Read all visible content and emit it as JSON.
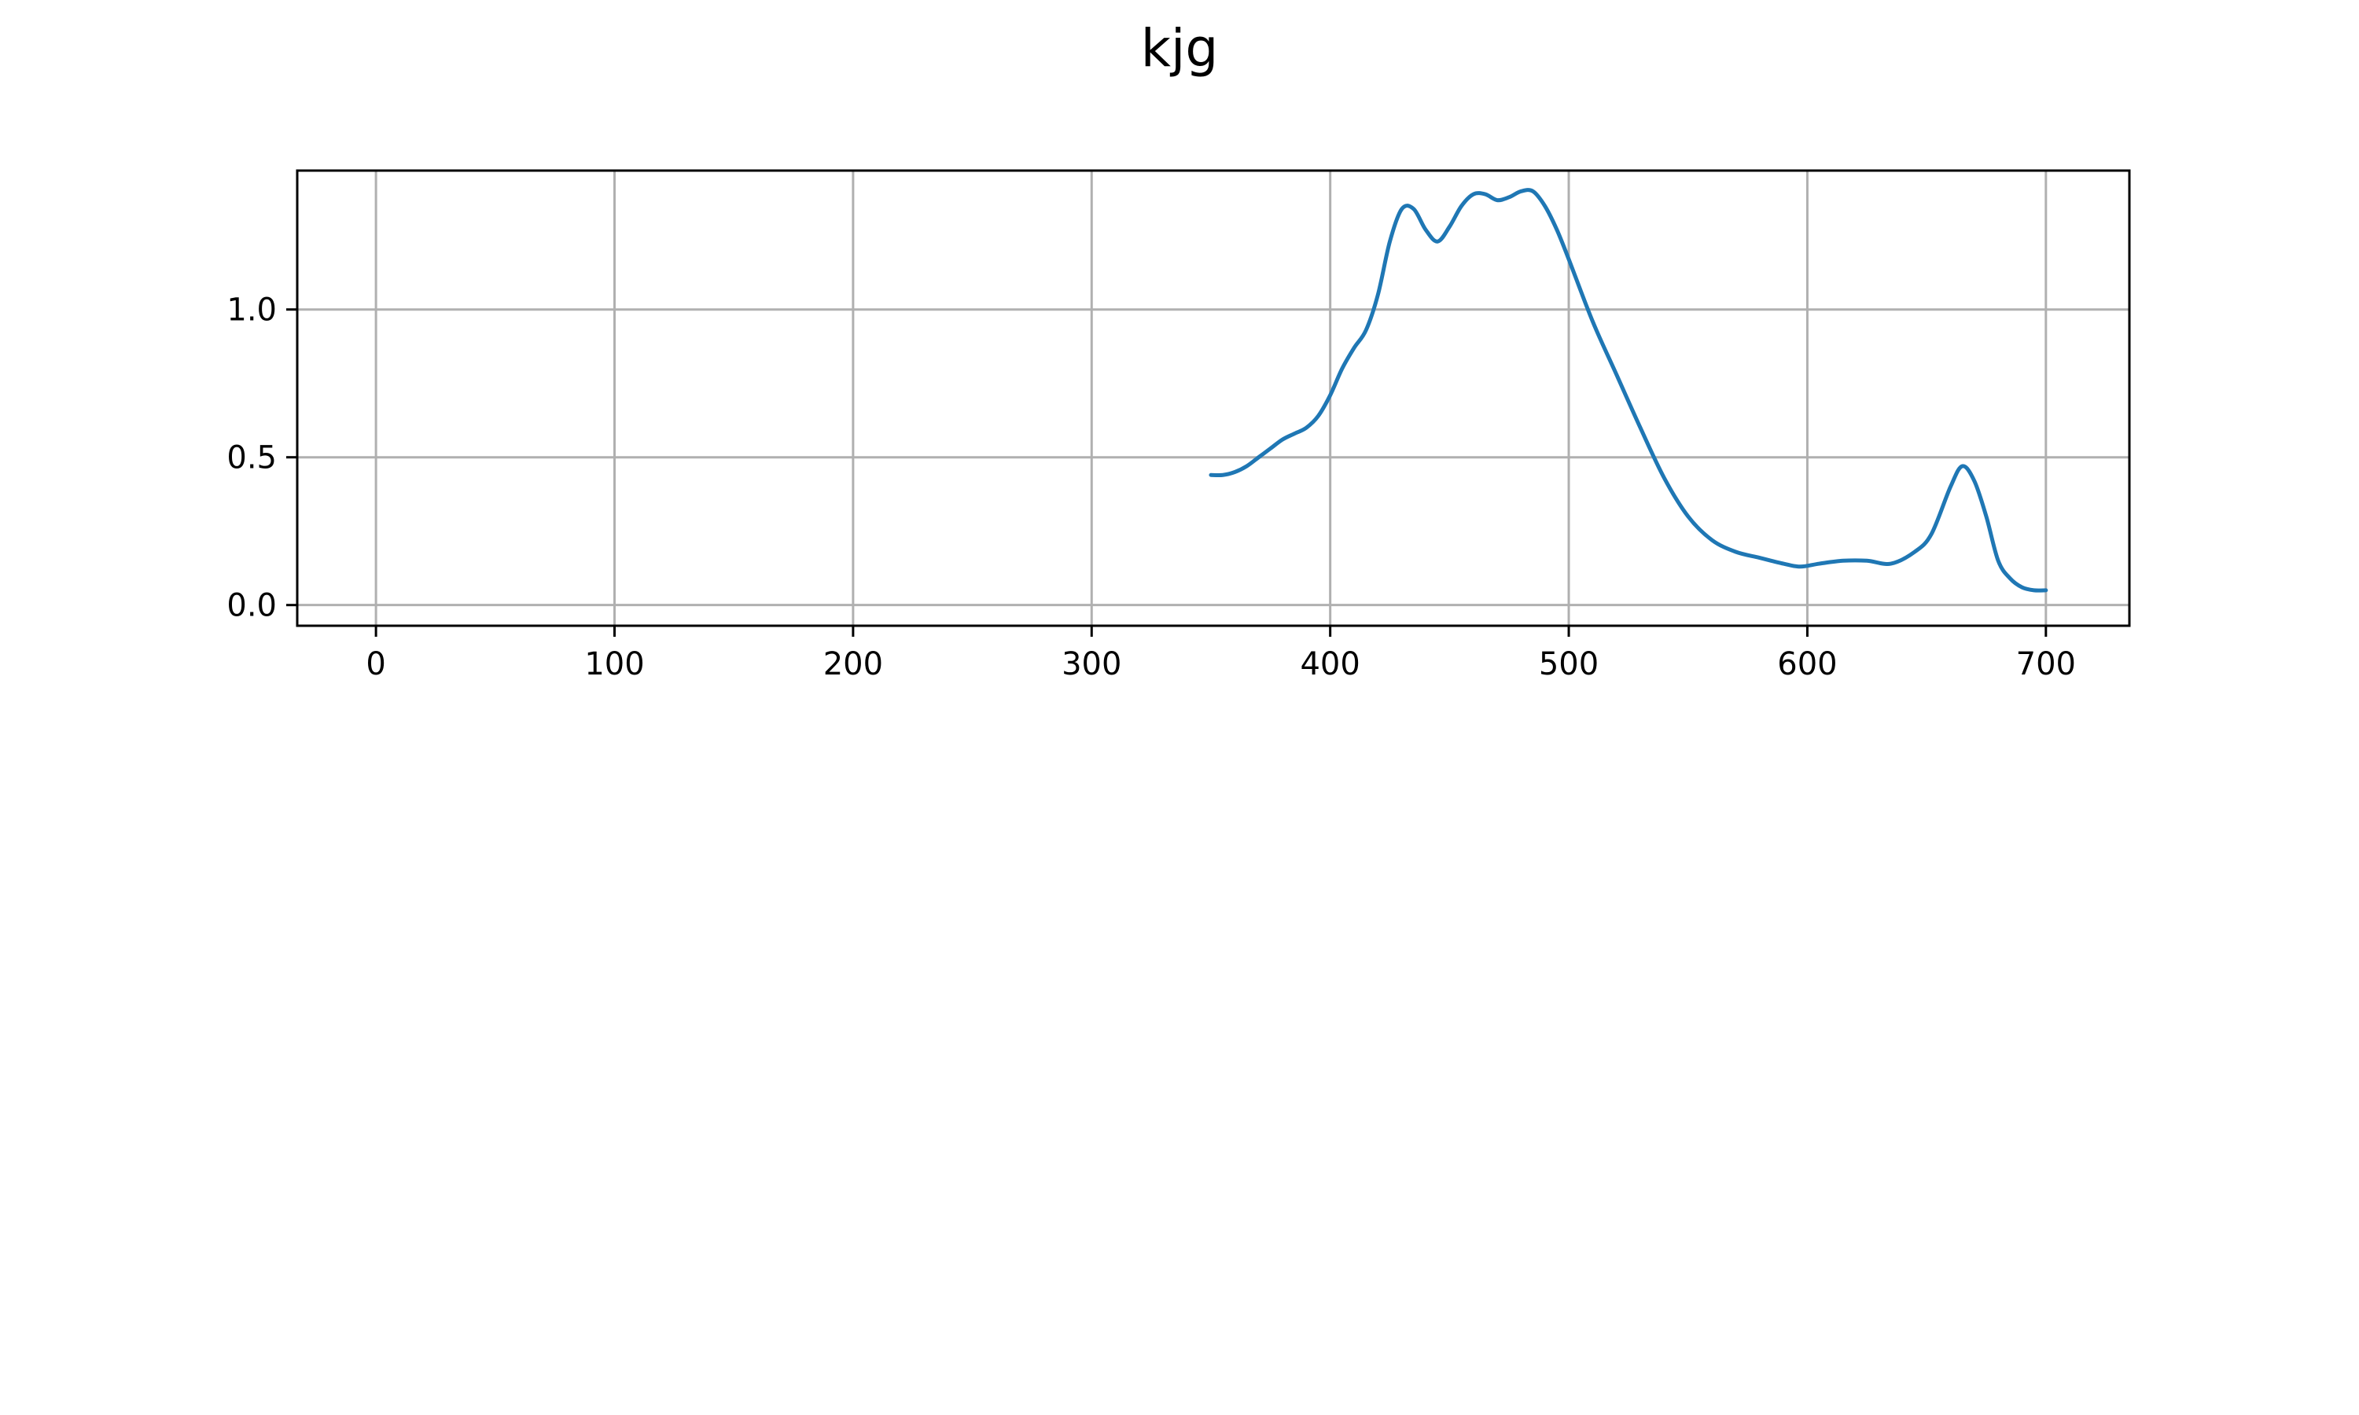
{
  "chart_data": {
    "type": "line",
    "title": "kjg",
    "xlabel": "",
    "ylabel": "",
    "xlim": [
      -33,
      735
    ],
    "ylim": [
      -0.07,
      1.47
    ],
    "xticks": [
      0,
      100,
      200,
      300,
      400,
      500,
      600,
      700
    ],
    "yticks": [
      0.0,
      0.5,
      1.0
    ],
    "xtick_labels": [
      "0",
      "100",
      "200",
      "300",
      "400",
      "500",
      "600",
      "700"
    ],
    "ytick_labels": [
      "0.0",
      "0.5",
      "1.0"
    ],
    "grid": true,
    "legend": null,
    "series": [
      {
        "name": "series-1",
        "color": "#1f77b4",
        "x": [
          350,
          355,
          360,
          365,
          370,
          375,
          380,
          385,
          390,
          395,
          400,
          405,
          410,
          415,
          420,
          425,
          430,
          435,
          440,
          445,
          450,
          455,
          460,
          465,
          470,
          475,
          480,
          485,
          490,
          495,
          500,
          510,
          520,
          530,
          540,
          550,
          560,
          570,
          580,
          590,
          597,
          605,
          615,
          625,
          635,
          645,
          652,
          660,
          665,
          670,
          675,
          680,
          685,
          690,
          695,
          700
        ],
        "y": [
          0.44,
          0.44,
          0.45,
          0.47,
          0.5,
          0.53,
          0.56,
          0.58,
          0.6,
          0.64,
          0.71,
          0.8,
          0.87,
          0.93,
          1.05,
          1.23,
          1.34,
          1.34,
          1.27,
          1.23,
          1.28,
          1.35,
          1.39,
          1.39,
          1.37,
          1.38,
          1.4,
          1.4,
          1.35,
          1.27,
          1.17,
          0.96,
          0.78,
          0.6,
          0.43,
          0.3,
          0.22,
          0.18,
          0.16,
          0.14,
          0.13,
          0.14,
          0.15,
          0.15,
          0.14,
          0.18,
          0.24,
          0.4,
          0.47,
          0.42,
          0.3,
          0.15,
          0.09,
          0.06,
          0.05,
          0.05
        ]
      }
    ]
  }
}
